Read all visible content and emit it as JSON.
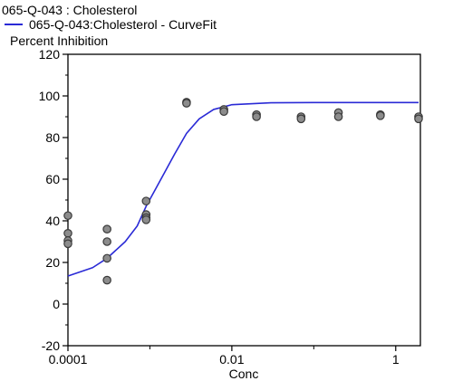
{
  "chart_data": {
    "type": "scatter",
    "title": "065-Q-043  : Cholesterol",
    "xlabel": "Conc",
    "ylabel": "Percent Inhibition",
    "x_scale": "log",
    "xlim": [
      0.0001,
      2
    ],
    "ylim": [
      -20,
      120
    ],
    "x_ticks": [
      {
        "value": 0.0001,
        "label": "0.0001"
      },
      {
        "value": 0.01,
        "label": "0.01"
      },
      {
        "value": 1,
        "label": "1"
      }
    ],
    "x_minor_ticks": [
      0.001,
      0.1
    ],
    "y_ticks": [
      {
        "value": -20,
        "label": "-20"
      },
      {
        "value": 0,
        "label": "0"
      },
      {
        "value": 20,
        "label": "20"
      },
      {
        "value": 40,
        "label": "40"
      },
      {
        "value": 60,
        "label": "60"
      },
      {
        "value": 80,
        "label": "80"
      },
      {
        "value": 100,
        "label": "100"
      },
      {
        "value": 120,
        "label": "120"
      }
    ],
    "grid": false,
    "legend": {
      "placement": "top-left",
      "entries": [
        {
          "label": "065-Q-043:Cholesterol - CurveFit",
          "color": "#2a2ad6",
          "kind": "line"
        }
      ]
    },
    "points": [
      {
        "x": 0.0001,
        "y": 42.5
      },
      {
        "x": 0.0001,
        "y": 34
      },
      {
        "x": 0.0001,
        "y": 30.5
      },
      {
        "x": 0.0001,
        "y": 29
      },
      {
        "x": 0.0003,
        "y": 36
      },
      {
        "x": 0.0003,
        "y": 30
      },
      {
        "x": 0.0003,
        "y": 22
      },
      {
        "x": 0.0003,
        "y": 11.5
      },
      {
        "x": 0.0009,
        "y": 49.5
      },
      {
        "x": 0.0009,
        "y": 43
      },
      {
        "x": 0.0009,
        "y": 41.5
      },
      {
        "x": 0.0009,
        "y": 40.5
      },
      {
        "x": 0.0028,
        "y": 97
      },
      {
        "x": 0.0028,
        "y": 96.5
      },
      {
        "x": 0.008,
        "y": 93.5
      },
      {
        "x": 0.008,
        "y": 92.5
      },
      {
        "x": 0.02,
        "y": 91
      },
      {
        "x": 0.02,
        "y": 90
      },
      {
        "x": 0.07,
        "y": 90
      },
      {
        "x": 0.07,
        "y": 89
      },
      {
        "x": 0.2,
        "y": 92
      },
      {
        "x": 0.2,
        "y": 90
      },
      {
        "x": 0.65,
        "y": 91
      },
      {
        "x": 0.65,
        "y": 90.5
      },
      {
        "x": 1.9,
        "y": 90
      },
      {
        "x": 1.9,
        "y": 89
      }
    ],
    "curve_fit": {
      "name": "065-Q-043:Cholesterol - CurveFit",
      "color": "#2a2ad6",
      "x": [
        0.0001,
        0.0002,
        0.0003,
        0.0005,
        0.0007,
        0.0009,
        0.0012,
        0.0016,
        0.002,
        0.0028,
        0.004,
        0.006,
        0.01,
        0.03,
        0.1,
        0.3,
        1,
        1.9
      ],
      "y": [
        13.5,
        17.5,
        22,
        30,
        37.5,
        47,
        56,
        65,
        72,
        82,
        89,
        93.5,
        95.8,
        96.7,
        96.8,
        96.8,
        96.8,
        96.8
      ]
    },
    "point_style": {
      "fill": "#8c8c8c",
      "stroke": "#3a3a3a"
    }
  }
}
